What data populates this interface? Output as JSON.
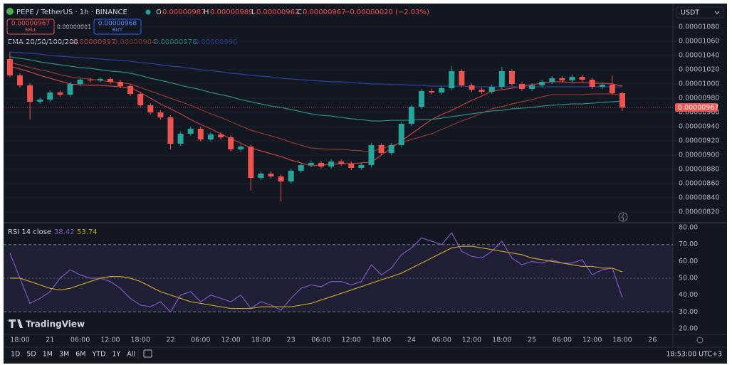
{
  "ui": {
    "symbol": "PEPE / TetherUS · 1h · BINANCE",
    "ohlc_labels": [
      "O",
      "H",
      "L",
      "C"
    ],
    "change": "−0.00000020 (−2.03%)",
    "sell_price": "0.00000967",
    "sell": "SELL",
    "spread": "0.00000001",
    "buy_price": "0.00000968",
    "buy": "BUY",
    "currency": "USDT",
    "indicator": "EMA 20/50/100/200",
    "rsi_label": "RSI 14 close",
    "brand": "TradingView",
    "ranges": [
      "1D",
      "5D",
      "1M",
      "3M",
      "6M",
      "YTD",
      "1Y",
      "All"
    ],
    "clock": "18:53:00 UTC+3"
  },
  "chart_data": [
    {
      "type": "candlestick",
      "categories": [
        null,
        "18:00",
        null,
        null,
        "21",
        null,
        null,
        "06:00",
        null,
        null,
        "12:00",
        null,
        null,
        "18:00",
        null,
        null,
        "22",
        null,
        null,
        "06:00",
        null,
        null,
        "12:00",
        null,
        null,
        "18:00",
        null,
        null,
        "23",
        null,
        null,
        "06:00",
        null,
        null,
        "12:00",
        null,
        null,
        "18:00",
        null,
        null,
        "24",
        null,
        null,
        "06:00",
        null,
        null,
        "12:00",
        null,
        null,
        "18:00",
        null,
        null,
        "25",
        null,
        null,
        "06:00",
        null,
        null,
        "12:00",
        null,
        null,
        "18:00",
        null,
        null,
        "26",
        null
      ],
      "open": [
        1.035e-05,
        1.012e-05,
        9.98e-06,
        9.75e-06,
        9.78e-06,
        9.88e-06,
        9.85e-06,
        1e-05,
        1.006e-05,
        1.005e-05,
        1.007e-05,
        1.003e-05,
        9.97e-06,
        9.86e-06,
        9.7e-06,
        9.6e-06,
        9.53e-06,
        9.16e-06,
        9.3e-06,
        9.37e-06,
        9.22e-06,
        9.29e-06,
        9.25e-06,
        9.08e-06,
        9.12e-06,
        8.68e-06,
        8.74e-06,
        8.7e-06,
        8.63e-06,
        8.78e-06,
        8.86e-06,
        8.89e-06,
        8.84e-06,
        8.91e-06,
        8.88e-06,
        8.82e-06,
        8.86e-06,
        9.14e-06,
        9.03e-06,
        9.14e-06,
        9.44e-06,
        9.68e-06,
        9.9e-06,
        9.88e-06,
        9.94e-06,
        1.018e-05,
        9.98e-06,
        9.92e-06,
        9.89e-06,
        9.96e-06,
        1.018e-05,
        1e-05,
        9.93e-06,
        9.98e-06,
        1.003e-05,
        1.008e-05,
        1.005e-05,
        1.01e-05,
        1.006e-05,
        9.96e-06,
        9.99e-06,
        9.87e-06,
        null,
        null,
        null,
        null
      ],
      "high": [
        1.045e-05,
        1.015e-05,
        1.001e-05,
        9.81e-06,
        9.91e-06,
        9.91e-06,
        1.003e-05,
        1.009e-05,
        1.009e-05,
        1.01e-05,
        1.01e-05,
        1.006e-05,
        1e-05,
        9.89e-06,
        9.73e-06,
        9.63e-06,
        9.56e-06,
        9.33e-06,
        9.4e-06,
        9.4e-06,
        9.32e-06,
        9.32e-06,
        9.28e-06,
        9.15e-06,
        9.15e-06,
        8.77e-06,
        8.77e-06,
        8.73e-06,
        8.81e-06,
        8.89e-06,
        8.92e-06,
        8.92e-06,
        8.94e-06,
        8.94e-06,
        8.91e-06,
        8.89e-06,
        9.17e-06,
        9.17e-06,
        9.17e-06,
        9.47e-06,
        9.71e-06,
        9.93e-06,
        9.93e-06,
        9.97e-06,
        1.025e-05,
        1.021e-05,
        1.001e-05,
        9.95e-06,
        9.99e-06,
        1.024e-05,
        1.021e-05,
        1.003e-05,
        1.001e-05,
        1.006e-05,
        1.011e-05,
        1.011e-05,
        1.013e-05,
        1.013e-05,
        1.009e-05,
        1.002e-05,
        1.012e-05,
        9.89e-06,
        null,
        null,
        null,
        null
      ],
      "low": [
        1.009e-05,
        9.95e-06,
        9.5e-06,
        9.72e-06,
        9.75e-06,
        9.82e-06,
        9.82e-06,
        9.97e-06,
        1.002e-05,
        1.002e-05,
        1e-05,
        9.94e-06,
        9.83e-06,
        9.67e-06,
        9.57e-06,
        9.5e-06,
        9.08e-06,
        9.13e-06,
        9.27e-06,
        9.19e-06,
        9.19e-06,
        9.22e-06,
        9.05e-06,
        9.05e-06,
        8.5e-06,
        8.65e-06,
        8.67e-06,
        8.35e-06,
        8.6e-06,
        8.75e-06,
        8.83e-06,
        8.81e-06,
        8.81e-06,
        8.85e-06,
        8.79e-06,
        8.79e-06,
        8.83e-06,
        9e-06,
        9e-06,
        9.11e-06,
        9.41e-06,
        9.65e-06,
        9.85e-06,
        9.85e-06,
        9.91e-06,
        9.95e-06,
        9.89e-06,
        9.86e-06,
        9.86e-06,
        9.93e-06,
        9.97e-06,
        9.9e-06,
        9.9e-06,
        9.95e-06,
        1e-05,
        1.002e-05,
        1.002e-05,
        1.003e-05,
        9.93e-06,
        9.93e-06,
        9.84e-06,
        9.62e-06,
        null,
        null,
        null,
        null
      ],
      "close": [
        1.012e-05,
        9.98e-06,
        9.75e-06,
        9.78e-06,
        9.88e-06,
        9.85e-06,
        1e-05,
        1.006e-05,
        1.005e-05,
        1.007e-05,
        1.003e-05,
        9.97e-06,
        9.86e-06,
        9.7e-06,
        9.6e-06,
        9.53e-06,
        9.16e-06,
        9.3e-06,
        9.37e-06,
        9.22e-06,
        9.29e-06,
        9.25e-06,
        9.08e-06,
        9.12e-06,
        8.68e-06,
        8.74e-06,
        8.7e-06,
        8.63e-06,
        8.78e-06,
        8.86e-06,
        8.89e-06,
        8.84e-06,
        8.91e-06,
        8.88e-06,
        8.82e-06,
        8.86e-06,
        9.14e-06,
        9.03e-06,
        9.14e-06,
        9.44e-06,
        9.68e-06,
        9.9e-06,
        9.88e-06,
        9.94e-06,
        1.018e-05,
        9.98e-06,
        9.92e-06,
        9.89e-06,
        9.96e-06,
        1.018e-05,
        1e-05,
        9.93e-06,
        9.98e-06,
        1.003e-05,
        1.008e-05,
        1.005e-05,
        1.01e-05,
        1.006e-05,
        9.96e-06,
        9.99e-06,
        9.87e-06,
        9.67e-06,
        null,
        null,
        null,
        null
      ],
      "up_color": "#26a69a",
      "down_color": "#ef5350",
      "series": [
        {
          "color": "#c2413d",
          "values": [
            1.025e-05,
            1.021e-05,
            1.017e-05,
            1.012e-05,
            1.008e-05,
            1.004e-05,
            1e-05,
            9.99e-06,
            9.98e-06,
            9.98e-06,
            9.97e-06,
            9.96e-06,
            9.95e-06,
            9.88e-06,
            9.8e-06,
            9.72e-06,
            9.65e-06,
            9.58e-06,
            9.5e-06,
            9.43e-06,
            9.37e-06,
            9.3e-06,
            9.23e-06,
            9.17e-06,
            9.1e-06,
            9.06e-06,
            9.02e-06,
            8.98e-06,
            8.93e-06,
            8.89e-06,
            8.85e-06,
            8.86e-06,
            8.87e-06,
            8.88e-06,
            8.88e-06,
            8.89e-06,
            8.9e-06,
            9e-06,
            9.1e-06,
            9.2e-06,
            9.3e-06,
            9.4e-06,
            9.5e-06,
            9.57e-06,
            9.63e-06,
            9.7e-06,
            9.77e-06,
            9.83e-06,
            9.9e-06,
            9.92e-06,
            9.94e-06,
            9.97e-06,
            9.99e-06,
            1.001e-05,
            1.003e-05,
            1.003e-05,
            1.002e-05,
            1.002e-05,
            1.001e-05,
            1.001e-05,
            1e-05,
            9.97e-06,
            null,
            null,
            null,
            null
          ]
        },
        {
          "color": "#8c3a2b",
          "values": [
            1.03e-05,
            1.027e-05,
            1.023e-05,
            1.02e-05,
            1.017e-05,
            1.013e-05,
            1.01e-05,
            1.008e-05,
            1.007e-05,
            1.005e-05,
            1.003e-05,
            1.002e-05,
            1e-05,
            9.95e-06,
            9.9e-06,
            9.85e-06,
            9.8e-06,
            9.75e-06,
            9.7e-06,
            9.64e-06,
            9.58e-06,
            9.53e-06,
            9.47e-06,
            9.41e-06,
            9.35e-06,
            9.31e-06,
            9.27e-06,
            9.23e-06,
            9.18e-06,
            9.14e-06,
            9.1e-06,
            9.09e-06,
            9.08e-06,
            9.08e-06,
            9.07e-06,
            9.06e-06,
            9.05e-06,
            9.09e-06,
            9.13e-06,
            9.18e-06,
            9.22e-06,
            9.26e-06,
            9.3e-06,
            9.36e-06,
            9.42e-06,
            9.48e-06,
            9.53e-06,
            9.59e-06,
            9.65e-06,
            9.68e-06,
            9.72e-06,
            9.75e-06,
            9.78e-06,
            9.82e-06,
            9.85e-06,
            9.85e-06,
            9.85e-06,
            9.85e-06,
            9.86e-06,
            9.86e-06,
            9.86e-06,
            9.84e-06,
            null,
            null,
            null,
            null
          ]
        },
        {
          "color": "#2a8a80",
          "values": [
            1.038e-05,
            1.036e-05,
            1.034e-05,
            1.031e-05,
            1.029e-05,
            1.027e-05,
            1.025e-05,
            1.023e-05,
            1.022e-05,
            1.02e-05,
            1.018e-05,
            1.017e-05,
            1.015e-05,
            1.012e-05,
            1.008e-05,
            1.005e-05,
            1.002e-05,
            9.98e-06,
            9.95e-06,
            9.92e-06,
            9.88e-06,
            9.85e-06,
            9.82e-06,
            9.78e-06,
            9.75e-06,
            9.72e-06,
            9.69e-06,
            9.67e-06,
            9.64e-06,
            9.61e-06,
            9.58e-06,
            9.56e-06,
            9.55e-06,
            9.53e-06,
            9.51e-06,
            9.5e-06,
            9.48e-06,
            9.48e-06,
            9.49e-06,
            9.49e-06,
            9.49e-06,
            9.5e-06,
            9.5e-06,
            9.52e-06,
            9.54e-06,
            9.56e-06,
            9.58e-06,
            9.6e-06,
            9.62e-06,
            9.63e-06,
            9.65e-06,
            9.66e-06,
            9.67e-06,
            9.69e-06,
            9.7e-06,
            9.71e-06,
            9.72e-06,
            9.72e-06,
            9.73e-06,
            9.74e-06,
            9.75e-06,
            9.76e-06,
            null,
            null,
            null,
            null
          ]
        },
        {
          "color": "#2b3f9e",
          "values": [
            1.045e-05,
            1.044e-05,
            1.043e-05,
            1.042e-05,
            1.04e-05,
            1.039e-05,
            1.038e-05,
            1.037e-05,
            1.036e-05,
            1.035e-05,
            1.034e-05,
            1.033e-05,
            1.032e-05,
            1.03e-05,
            1.029e-05,
            1.027e-05,
            1.025e-05,
            1.024e-05,
            1.022e-05,
            1.02e-05,
            1.019e-05,
            1.017e-05,
            1.015e-05,
            1.014e-05,
            1.012e-05,
            1.011e-05,
            1.01e-05,
            1.008e-05,
            1.007e-05,
            1.006e-05,
            1.005e-05,
            1.004e-05,
            1.003e-05,
            1.003e-05,
            1.002e-05,
            1.001e-05,
            1e-05,
            1e-05,
            9.99e-06,
            9.99e-06,
            9.98e-06,
            9.98e-06,
            9.97e-06,
            9.97e-06,
            9.97e-06,
            9.97e-06,
            9.96e-06,
            9.96e-06,
            9.96e-06,
            9.96e-06,
            9.96e-06,
            9.96e-06,
            9.96e-06,
            9.96e-06,
            9.96e-06,
            9.96e-06,
            9.96e-06,
            9.96e-06,
            9.96e-06,
            9.96e-06,
            9.96e-06,
            9.96e-06,
            null,
            null,
            null,
            null
          ]
        }
      ],
      "ylim": [
        8.1e-06,
        1.11e-05
      ],
      "yticks": [
        {
          "value": 8.2e-06,
          "label": "0.00000820"
        },
        {
          "value": 8.4e-06,
          "label": "0.00000840"
        },
        {
          "value": 8.6e-06,
          "label": "0.00000860"
        },
        {
          "value": 8.8e-06,
          "label": "0.00000880"
        },
        {
          "value": 9e-06,
          "label": "0.00000900"
        },
        {
          "value": 9.2e-06,
          "label": "0.00000920"
        },
        {
          "value": 9.4e-06,
          "label": "0.00000940"
        },
        {
          "value": 9.6e-06,
          "label": "0.00000960"
        },
        {
          "value": 9.8e-06,
          "label": "0.00000980"
        },
        {
          "value": 1e-05,
          "label": "0.00001000"
        },
        {
          "value": 1.02e-05,
          "label": "0.00001020"
        },
        {
          "value": 1.04e-05,
          "label": "0.00001040"
        },
        {
          "value": 1.06e-05,
          "label": "0.00001060"
        },
        {
          "value": 1.08e-05,
          "label": "0.00001080"
        }
      ],
      "grid": true
    },
    {
      "type": "line",
      "series": [
        {
          "color": "#7e57c2",
          "values": [
            65,
            50,
            35,
            38,
            42,
            50,
            55,
            52,
            50,
            50,
            48,
            44,
            38,
            34,
            33,
            36,
            30,
            40,
            42,
            36,
            40,
            38,
            36,
            40,
            32,
            36,
            34,
            31,
            38,
            44,
            46,
            45,
            48,
            48,
            46,
            48,
            58,
            52,
            56,
            64,
            68,
            74,
            72,
            70,
            77,
            66,
            63,
            62,
            66,
            72,
            62,
            58,
            60,
            59,
            61,
            59,
            59,
            61,
            52,
            55,
            56,
            38.42,
            null,
            null,
            null,
            null
          ]
        },
        {
          "color": "#c9a227",
          "values": [
            50,
            50,
            48,
            46,
            44,
            43,
            44,
            46,
            48,
            50,
            51,
            51,
            50,
            48,
            45,
            42,
            40,
            38,
            36,
            35,
            34,
            33,
            32,
            32,
            32,
            33,
            33,
            33,
            33,
            34,
            35,
            37,
            39,
            41,
            43,
            45,
            47,
            49,
            51,
            53,
            56,
            59,
            62,
            65,
            68,
            69,
            69,
            68,
            67,
            66,
            65,
            64,
            62,
            61,
            60,
            59,
            58,
            57,
            57,
            56,
            56,
            53.74,
            null,
            null,
            null,
            null
          ]
        }
      ],
      "ylim": [
        17,
        83
      ],
      "yticks": [
        {
          "value": 20,
          "label": "20.00"
        },
        {
          "value": 30,
          "label": "30.00"
        },
        {
          "value": 40,
          "label": "40.00"
        },
        {
          "value": 50,
          "label": "50.00"
        },
        {
          "value": 60,
          "label": "60.00"
        },
        {
          "value": 70,
          "label": "70.00"
        },
        {
          "value": 80,
          "label": "80.00"
        }
      ],
      "band": [
        30,
        70
      ],
      "midline": 50,
      "band_color": "#7e57c2"
    }
  ]
}
